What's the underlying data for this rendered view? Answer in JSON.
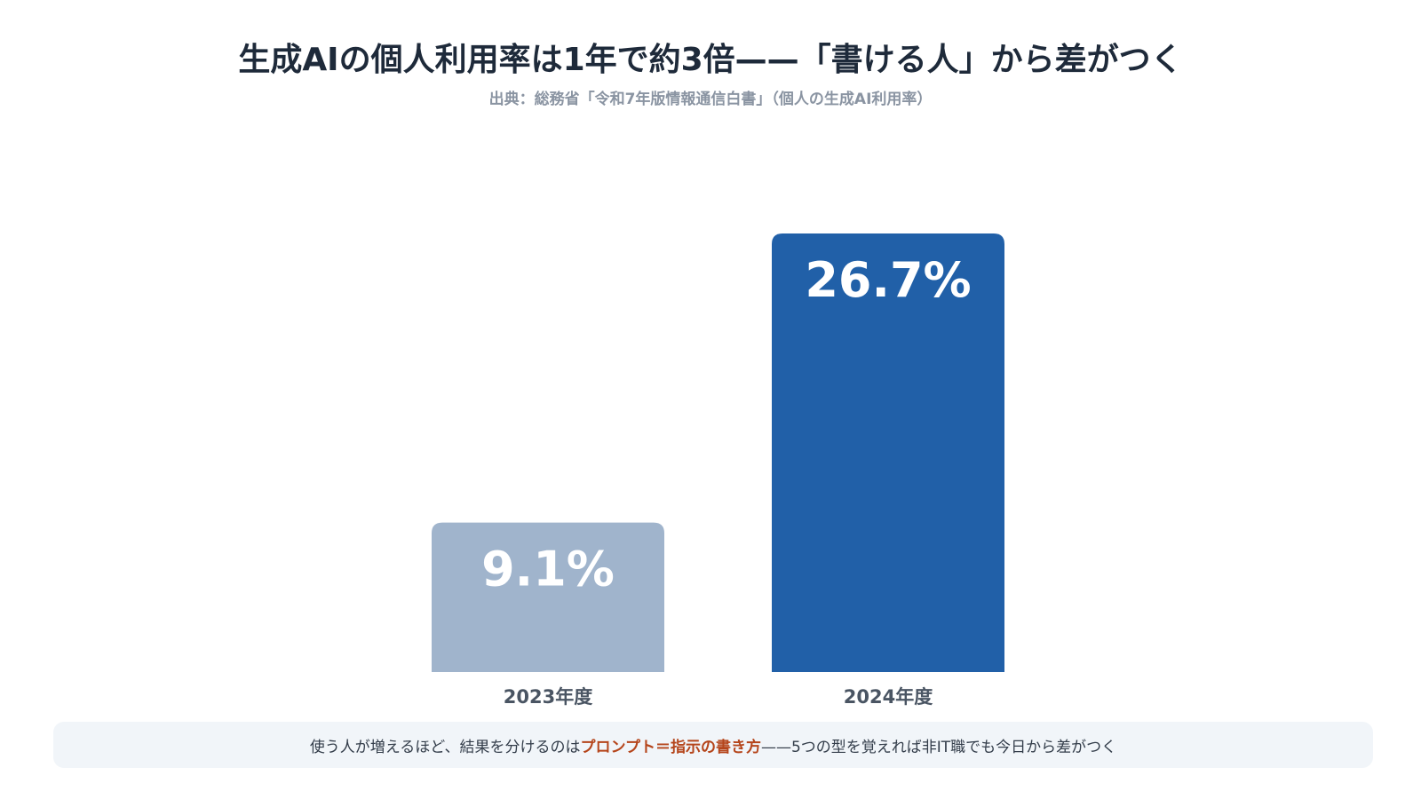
{
  "title": "生成AIの個人利用率は1年で約3倍——「書ける人」から差がつく",
  "subtitle": "出典：総務省「令和7年版情報通信白書」（個人の生成AI利用率）",
  "caption": {
    "before": "使う人が増えるほど、結果を分けるのは",
    "highlight": "プロンプト＝指示の書き方",
    "after": "——5つの型を覚えれば非IT職でも今日から差がつく"
  },
  "colors": {
    "bar_2023": "#a0b4cc",
    "bar_2024": "#2160a8",
    "highlight": "#b5451b",
    "title": "#1e2a3a",
    "axis_label": "#4a5563"
  },
  "chart_data": {
    "type": "bar",
    "title": "生成AIの個人利用率は1年で約3倍——「書ける人」から差がつく",
    "xlabel": "",
    "ylabel": "",
    "categories": [
      "2023年度",
      "2024年度"
    ],
    "values": [
      9.1,
      26.7
    ],
    "data_labels": [
      "9.1%",
      "26.7%"
    ],
    "ylim": [
      0,
      30
    ],
    "grid": false,
    "legend": "none"
  }
}
